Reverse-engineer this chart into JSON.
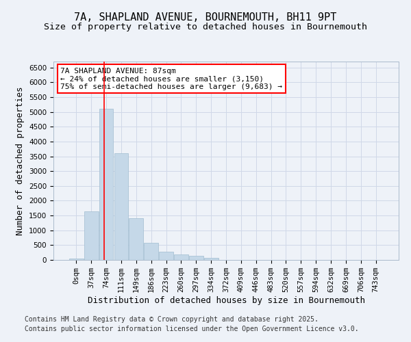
{
  "title_line1": "7A, SHAPLAND AVENUE, BOURNEMOUTH, BH11 9PT",
  "title_line2": "Size of property relative to detached houses in Bournemouth",
  "xlabel": "Distribution of detached houses by size in Bournemouth",
  "ylabel": "Number of detached properties",
  "bar_values": [
    50,
    1650,
    5100,
    3600,
    1400,
    575,
    270,
    195,
    130,
    75,
    10,
    0,
    0,
    0,
    0,
    0,
    0,
    0,
    0,
    0,
    0
  ],
  "bar_labels": [
    "0sqm",
    "37sqm",
    "74sqm",
    "111sqm",
    "149sqm",
    "186sqm",
    "223sqm",
    "260sqm",
    "297sqm",
    "334sqm",
    "372sqm",
    "409sqm",
    "446sqm",
    "483sqm",
    "520sqm",
    "557sqm",
    "594sqm",
    "632sqm",
    "669sqm",
    "706sqm",
    "743sqm"
  ],
  "bar_color": "#c5d8e8",
  "bar_edge_color": "#a0bcd0",
  "grid_color": "#d0d8e8",
  "background_color": "#eef2f8",
  "red_line_x": 1.85,
  "annotation_text": "7A SHAPLAND AVENUE: 87sqm\n← 24% of detached houses are smaller (3,150)\n75% of semi-detached houses are larger (9,683) →",
  "ylim": [
    0,
    6700
  ],
  "yticks": [
    0,
    500,
    1000,
    1500,
    2000,
    2500,
    3000,
    3500,
    4000,
    4500,
    5000,
    5500,
    6000,
    6500
  ],
  "footer_line1": "Contains HM Land Registry data © Crown copyright and database right 2025.",
  "footer_line2": "Contains public sector information licensed under the Open Government Licence v3.0.",
  "title_fontsize": 11,
  "subtitle_fontsize": 9.5,
  "axis_label_fontsize": 9,
  "tick_fontsize": 7.5,
  "annotation_fontsize": 8,
  "footer_fontsize": 7
}
